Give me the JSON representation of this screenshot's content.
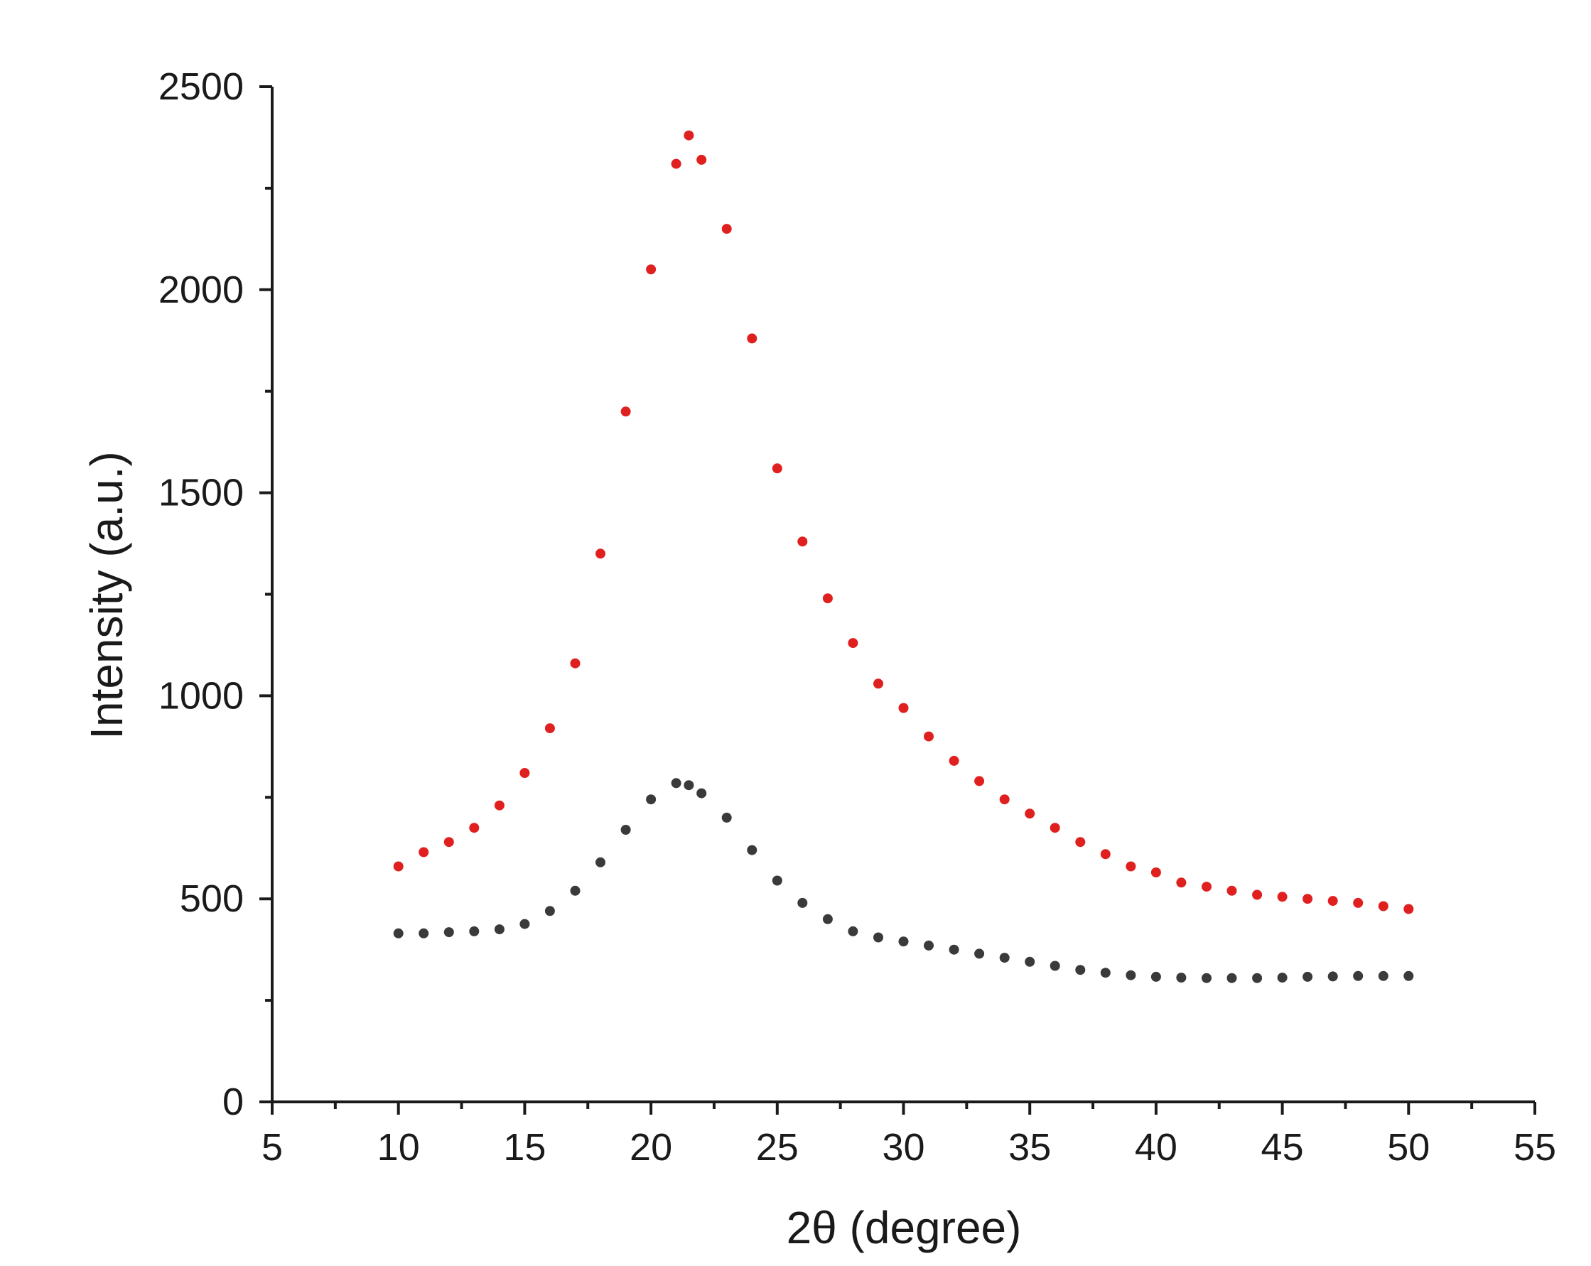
{
  "chart_data": {
    "type": "scatter",
    "title": "",
    "xlabel": "2θ (degree)",
    "ylabel": "Intensity (a.u.)",
    "xlim": [
      5,
      55
    ],
    "ylim": [
      0,
      2500
    ],
    "xticks": [
      5,
      10,
      15,
      20,
      25,
      30,
      35,
      40,
      45,
      50,
      55
    ],
    "yticks": [
      0,
      500,
      1000,
      1500,
      2000,
      2500
    ],
    "grid": false,
    "legend": "none",
    "series": [
      {
        "color": "#e0201f",
        "x": [
          10,
          11,
          12,
          13,
          14,
          15,
          16,
          17,
          18,
          19,
          20,
          21,
          21.5,
          22,
          23,
          24,
          25,
          26,
          27,
          28,
          29,
          30,
          31,
          32,
          33,
          34,
          35,
          36,
          37,
          38,
          39,
          40,
          41,
          42,
          43,
          44,
          45,
          46,
          47,
          48,
          49,
          50
        ],
        "y": [
          580,
          615,
          640,
          675,
          730,
          810,
          920,
          1080,
          1350,
          1700,
          2050,
          2310,
          2380,
          2320,
          2150,
          1880,
          1560,
          1380,
          1240,
          1130,
          1030,
          970,
          900,
          840,
          790,
          745,
          710,
          675,
          640,
          610,
          580,
          565,
          540,
          530,
          520,
          510,
          505,
          500,
          495,
          490,
          482,
          475
        ]
      },
      {
        "color": "#3a3a3a",
        "x": [
          10,
          11,
          12,
          13,
          14,
          15,
          16,
          17,
          18,
          19,
          20,
          21,
          21.5,
          22,
          23,
          24,
          25,
          26,
          27,
          28,
          29,
          30,
          31,
          32,
          33,
          34,
          35,
          36,
          37,
          38,
          39,
          40,
          41,
          42,
          43,
          44,
          45,
          46,
          47,
          48,
          49,
          50
        ],
        "y": [
          415,
          415,
          418,
          420,
          425,
          438,
          470,
          520,
          590,
          670,
          745,
          785,
          780,
          760,
          700,
          620,
          545,
          490,
          450,
          420,
          405,
          395,
          385,
          375,
          365,
          355,
          345,
          335,
          325,
          318,
          312,
          308,
          306,
          305,
          305,
          305,
          306,
          308,
          309,
          310,
          310,
          310
        ]
      }
    ]
  }
}
